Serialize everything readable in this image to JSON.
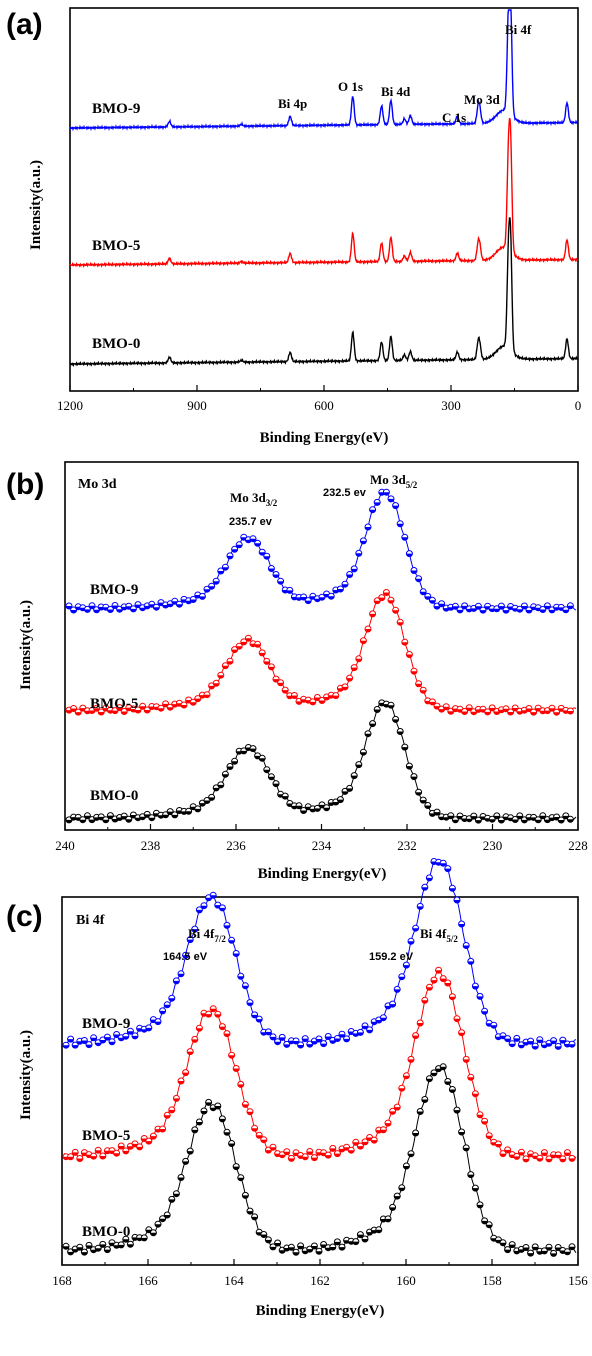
{
  "chart_data": [
    {
      "panel": "(a)",
      "type": "line",
      "xlabel": "Binding Energy(eV)",
      "ylabel": "Intensity(a.u.)",
      "xlim": [
        1200,
        0
      ],
      "x_reversed": true,
      "xticks": [
        1200,
        900,
        600,
        300,
        0
      ],
      "series": [
        {
          "name": "BMO-9",
          "color": "#0000ff"
        },
        {
          "name": "BMO-5",
          "color": "#ff0000"
        },
        {
          "name": "BMO-0",
          "color": "#000000"
        }
      ],
      "peaks": [
        {
          "x": 965,
          "h": 0.25
        },
        {
          "x": 795,
          "h": 0.08
        },
        {
          "x": 680,
          "h": 0.42
        },
        {
          "x": 532,
          "h": 1.3
        },
        {
          "x": 464,
          "h": 0.85
        },
        {
          "x": 442,
          "h": 1.1
        },
        {
          "x": 410,
          "h": 0.25
        },
        {
          "x": 396,
          "h": 0.4
        },
        {
          "x": 285,
          "h": 0.35
        },
        {
          "x": 236,
          "h": 0.65
        },
        {
          "x": 232,
          "h": 0.55
        },
        {
          "x": 164.5,
          "h": 3.8
        },
        {
          "x": 159.2,
          "h": 4.6
        },
        {
          "x": 26,
          "h": 0.9
        }
      ],
      "annotations": [
        "Bi 4f",
        "O 1s",
        "Bi 4d",
        "Mo 3d",
        "C 1s",
        "Bi 4p"
      ]
    },
    {
      "panel": "(b)",
      "type": "scatter",
      "title": "Mo 3d",
      "xlabel": "Binding Energy(eV)",
      "ylabel": "Intensity(a.u.)",
      "xlim": [
        240,
        228
      ],
      "x_reversed": true,
      "xticks": [
        240,
        238,
        236,
        234,
        232,
        230,
        228
      ],
      "series": [
        {
          "name": "BMO-9",
          "color": "#0000ff"
        },
        {
          "name": "BMO-5",
          "color": "#ff0000"
        },
        {
          "name": "BMO-0",
          "color": "#000000"
        }
      ],
      "peaks": [
        {
          "x": 235.7,
          "h": 0.6,
          "w": 0.5
        },
        {
          "x": 232.5,
          "h": 1.0,
          "w": 0.45
        }
      ],
      "annotations": [
        {
          "main": "Mo 3d",
          "sub": "3/2",
          "value": "235.7 ev"
        },
        {
          "main": "Mo 3d",
          "sub": "5/2",
          "value": "232.5 ev"
        }
      ]
    },
    {
      "panel": "(c)",
      "type": "scatter",
      "title": "Bi 4f",
      "xlabel": "Binding Energy(eV)",
      "ylabel": "Intensity(a.u.)",
      "xlim": [
        168,
        156
      ],
      "x_reversed": true,
      "xticks": [
        168,
        166,
        164,
        162,
        160,
        158,
        156
      ],
      "series": [
        {
          "name": "BMO-9",
          "color": "#0000ff"
        },
        {
          "name": "BMO-5",
          "color": "#ff0000"
        },
        {
          "name": "BMO-0",
          "color": "#000000"
        }
      ],
      "peaks": [
        {
          "x": 164.5,
          "h": 0.8,
          "w": 0.55
        },
        {
          "x": 159.2,
          "h": 1.0,
          "w": 0.55
        }
      ],
      "annotations": [
        {
          "main": "Bi 4f",
          "sub": "7/2",
          "value": "164.5 eV"
        },
        {
          "main": "Bi 4f",
          "sub": "5/2",
          "value": "159.2 eV"
        }
      ]
    }
  ]
}
